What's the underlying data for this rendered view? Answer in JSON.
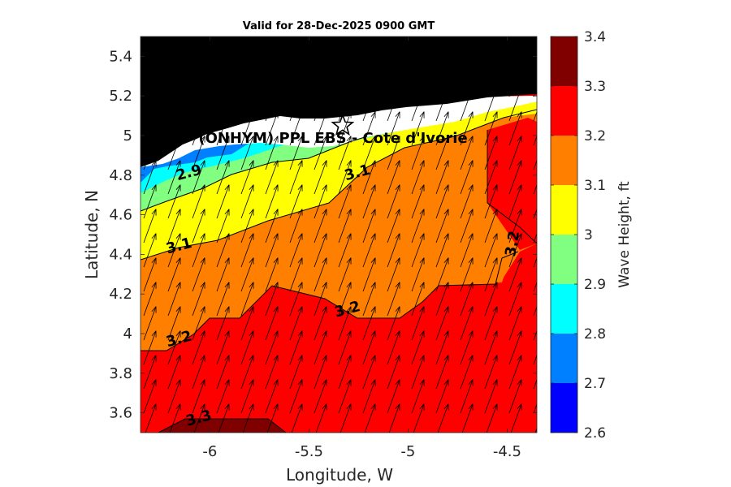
{
  "title": "Valid for 28-Dec-2025 0900 GMT",
  "station_label": "(ONHYM) PPL EBS   - Cote d'Ivorie",
  "chart_data": {
    "type": "heatmap",
    "title": "Valid for 28-Dec-2025 0900 GMT",
    "xlabel": "Longitude, W",
    "ylabel": "Latitude, N",
    "xlim": [
      -6.35,
      -4.35
    ],
    "ylim": [
      3.5,
      5.5
    ],
    "x_ticks": [
      "-6",
      "-5.5",
      "-5",
      "-4.5"
    ],
    "x_tick_values": [
      -6,
      -5.5,
      -5,
      -4.5
    ],
    "y_ticks": [
      "5.4",
      "5.2",
      "5",
      "4.8",
      "4.6",
      "4.4",
      "4.2",
      "4",
      "3.8",
      "3.6"
    ],
    "y_tick_values": [
      5.4,
      5.2,
      5.0,
      4.8,
      4.6,
      4.4,
      4.2,
      4.0,
      3.8,
      3.6
    ],
    "colorbar": {
      "label": "Wave Height, ft",
      "levels": [
        2.6,
        2.7,
        2.8,
        2.9,
        3.0,
        3.1,
        3.2,
        3.3,
        3.4
      ],
      "tick_labels": [
        "2.6",
        "2.7",
        "2.8",
        "2.9",
        "3",
        "3.1",
        "3.2",
        "3.3",
        "3.4"
      ],
      "colors": [
        "#0000ff",
        "#0080ff",
        "#00ffff",
        "#80ff80",
        "#ffff00",
        "#ff8000",
        "#ff0000",
        "#800000"
      ]
    },
    "contour_labels": [
      {
        "text": "2.9",
        "lon": -6.1,
        "lat": 4.79
      },
      {
        "text": "3.1",
        "lon": -5.25,
        "lat": 4.79
      },
      {
        "text": "3.1",
        "lon": -6.15,
        "lat": 4.42
      },
      {
        "text": "3.2",
        "lon": -4.45,
        "lat": 4.45
      },
      {
        "text": "3.2",
        "lon": -5.3,
        "lat": 4.1
      },
      {
        "text": "3.2",
        "lon": -6.15,
        "lat": 3.95
      },
      {
        "text": "3.3",
        "lon": -6.05,
        "lat": 3.55
      }
    ],
    "station": {
      "name": "(ONHYM) PPL EBS   - Cote d'Ivorie",
      "lon": -5.33,
      "lat": 5.05
    },
    "land_color": "#000000",
    "wind_arrows": "vector field pointing north-northeast"
  }
}
